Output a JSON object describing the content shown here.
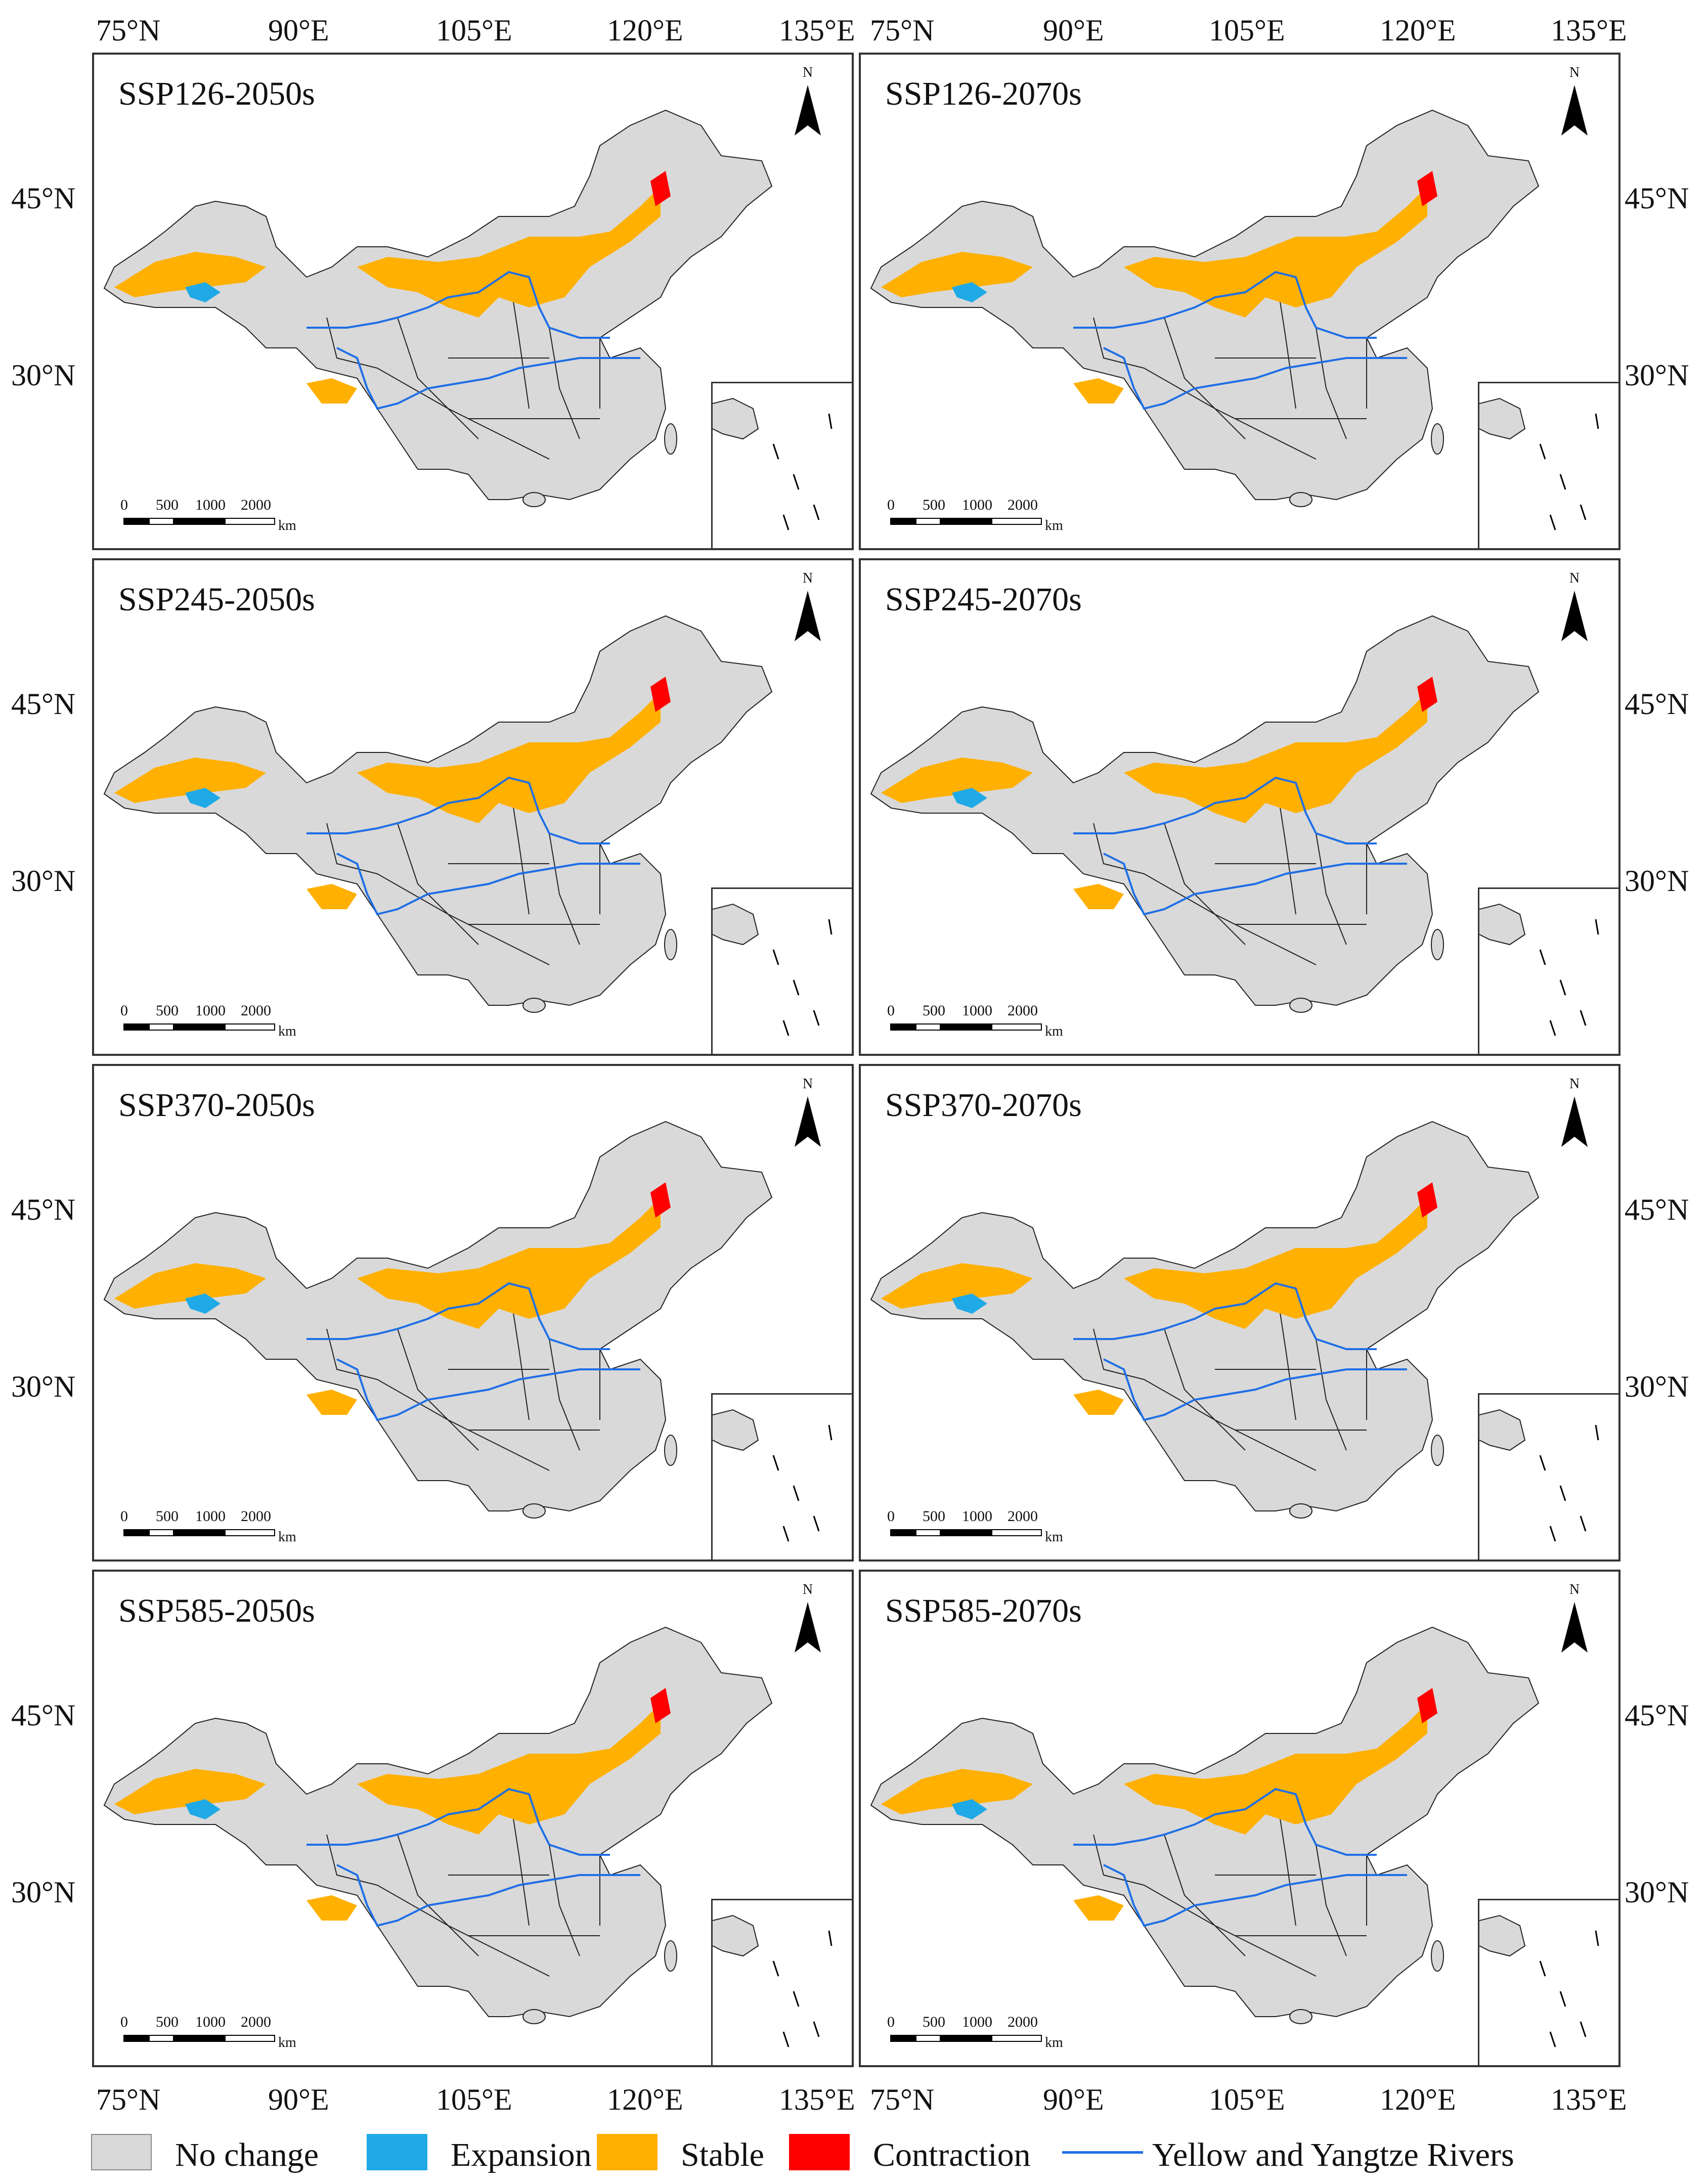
{
  "axes": {
    "top_lon_left": [
      "75°N",
      "90°E",
      "105°E",
      "120°E",
      "135°E"
    ],
    "top_lon_right": [
      "75°N",
      "90°E",
      "105°E",
      "120°E",
      "135°E"
    ],
    "bottom_lon_left": [
      "75°N",
      "90°E",
      "105°E",
      "120°E",
      "135°E"
    ],
    "bottom_lon_right": [
      "75°N",
      "90°E",
      "105°E",
      "120°E",
      "135°E"
    ],
    "lat_labels": [
      "45°N",
      "30°N"
    ]
  },
  "panels": [
    {
      "title": "SSP126-2050s"
    },
    {
      "title": "SSP126-2070s"
    },
    {
      "title": "SSP245-2050s"
    },
    {
      "title": "SSP245-2070s"
    },
    {
      "title": "SSP370-2050s"
    },
    {
      "title": "SSP370-2070s"
    },
    {
      "title": "SSP585-2050s"
    },
    {
      "title": "SSP585-2070s"
    }
  ],
  "north_arrow": {
    "label": "N"
  },
  "scale_bar": {
    "labels": [
      "0",
      "500",
      "1000",
      "2000"
    ],
    "unit": "km"
  },
  "legend": [
    {
      "label": "No change",
      "color": "#d9d9d9",
      "kind": "swatch"
    },
    {
      "label": "Expansion",
      "color": "#1fa9e6",
      "kind": "swatch"
    },
    {
      "label": "Stable",
      "color": "#ffb000",
      "kind": "swatch"
    },
    {
      "label": "Contraction",
      "color": "#ff0000",
      "kind": "swatch"
    },
    {
      "label": "Yellow and Yangtze Rivers",
      "color": "#1f6fe5",
      "kind": "line"
    }
  ],
  "colors": {
    "land": "#d9d9d9",
    "expansion": "#1fa9e6",
    "stable": "#ffb000",
    "contraction": "#ff0000",
    "river": "#1f6fe5",
    "border": "#222222"
  }
}
